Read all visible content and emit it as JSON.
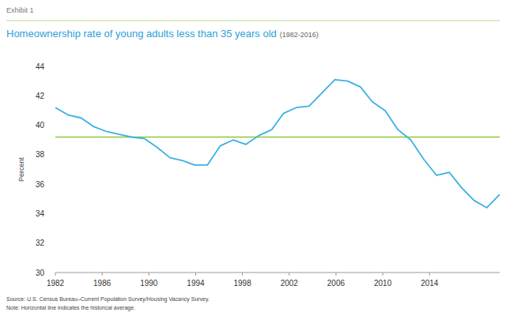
{
  "chart_data": {
    "type": "line",
    "header": "Exhibit 1",
    "title": "Homeownership rate of young adults less than 35 years old",
    "subtitle": "(1982-2016)",
    "y_label": "Percent",
    "source": "Source: U.S. Census Bureau–Current Population Survey/Housing Vacancy Survey.",
    "note": "Note: Horizontal line indicates the historical average.",
    "x": [
      1982.0,
      1983.1,
      1984.2,
      1985.3,
      1986.3,
      1987.4,
      1988.5,
      1989.6,
      1990.7,
      1991.8,
      1992.9,
      1993.9,
      1995.0,
      1996.1,
      1997.2,
      1998.3,
      1999.4,
      2000.5,
      2001.5,
      2002.6,
      2003.7,
      2004.8,
      2005.9,
      2007.0,
      2008.1,
      2009.1,
      2010.2,
      2011.3,
      2012.4,
      2013.5,
      2014.6,
      2015.7,
      2016.7,
      2017.8,
      2018.9,
      2020.0
    ],
    "series": [
      {
        "name": "Homeownership rate",
        "color": "#3bb0e3",
        "values": [
          41.2,
          40.7,
          40.5,
          39.9,
          39.6,
          39.4,
          39.2,
          39.1,
          38.5,
          37.8,
          37.6,
          37.3,
          37.3,
          38.6,
          39.0,
          38.7,
          39.3,
          39.7,
          40.8,
          41.2,
          41.3,
          42.2,
          43.1,
          43.0,
          42.6,
          41.6,
          41.0,
          39.7,
          39.0,
          37.7,
          36.6,
          36.8,
          35.8,
          34.9,
          34.4,
          35.3
        ]
      }
    ],
    "average_line": {
      "value": 39.2,
      "color": "#8dc63f"
    },
    "xlim": [
      1982,
      2020
    ],
    "xticks": [
      1982,
      1986,
      1990,
      1994,
      1998,
      2002,
      2006,
      2010,
      2014
    ],
    "ylim": [
      30,
      44
    ],
    "yticks": [
      30,
      32,
      34,
      36,
      38,
      40,
      42,
      44
    ],
    "grid": false
  }
}
